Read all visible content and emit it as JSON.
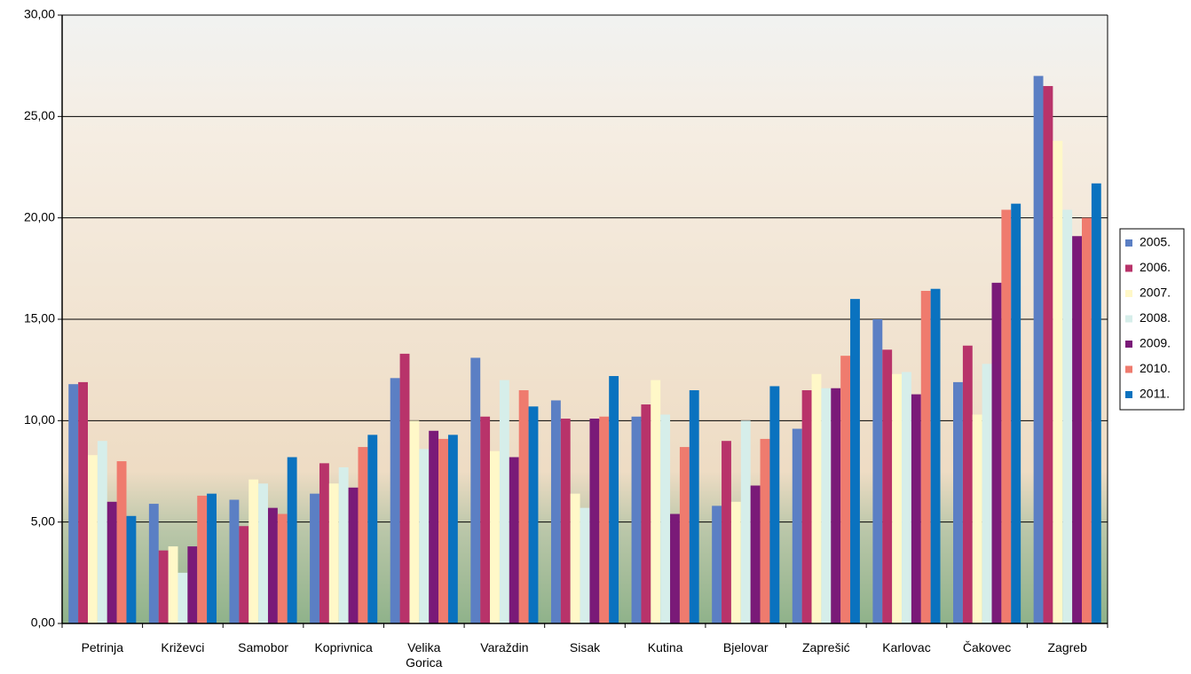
{
  "chart_data": {
    "type": "bar",
    "categories": [
      "Petrinja",
      "Križevci",
      "Samobor",
      "Koprivnica",
      "Velika Gorica",
      "Varaždin",
      "Sisak",
      "Kutina",
      "Bjelovar",
      "Zaprešić",
      "Karlovac",
      "Čakovec",
      "Zagreb"
    ],
    "series": [
      {
        "name": "2005.",
        "color": "#5b7fc4",
        "values": [
          11.8,
          5.9,
          6.1,
          6.4,
          12.1,
          13.1,
          11.0,
          10.2,
          5.8,
          9.6,
          15.0,
          11.9,
          27.0
        ]
      },
      {
        "name": "2006.",
        "color": "#b8336a",
        "values": [
          11.9,
          3.6,
          4.8,
          7.9,
          13.3,
          10.2,
          10.1,
          10.8,
          9.0,
          11.5,
          13.5,
          13.7,
          26.5
        ]
      },
      {
        "name": "2007.",
        "color": "#fff8c8",
        "values": [
          8.3,
          3.8,
          7.1,
          6.9,
          10.0,
          8.5,
          6.4,
          12.0,
          6.0,
          12.3,
          12.3,
          10.3,
          23.8
        ]
      },
      {
        "name": "2008.",
        "color": "#d6eeea",
        "values": [
          9.0,
          2.5,
          6.9,
          7.7,
          8.6,
          12.0,
          5.7,
          10.3,
          10.0,
          11.6,
          12.4,
          12.8,
          20.4
        ]
      },
      {
        "name": "2009.",
        "color": "#7a1a78",
        "values": [
          6.0,
          3.8,
          5.7,
          6.7,
          9.5,
          8.2,
          10.1,
          5.4,
          6.8,
          11.6,
          11.3,
          16.8,
          19.1
        ]
      },
      {
        "name": "2010.",
        "color": "#ef7b6e",
        "values": [
          8.0,
          6.3,
          5.4,
          8.7,
          9.1,
          11.5,
          10.2,
          8.7,
          9.1,
          13.2,
          16.4,
          20.4,
          20.0
        ]
      },
      {
        "name": "2011.",
        "color": "#0a72bf",
        "values": [
          5.3,
          6.4,
          8.2,
          9.3,
          9.3,
          10.7,
          12.2,
          11.5,
          11.7,
          16.0,
          16.5,
          20.7,
          21.7
        ]
      }
    ],
    "ylim": [
      0,
      30
    ],
    "yticks": [
      {
        "value": 0,
        "label": "0,00"
      },
      {
        "value": 5,
        "label": "5,00"
      },
      {
        "value": 10,
        "label": "10,00"
      },
      {
        "value": 15,
        "label": "15,00"
      },
      {
        "value": 20,
        "label": "20,00"
      },
      {
        "value": 25,
        "label": "25,00"
      },
      {
        "value": 30,
        "label": "30,00"
      }
    ],
    "grid": true,
    "legend": "right"
  }
}
